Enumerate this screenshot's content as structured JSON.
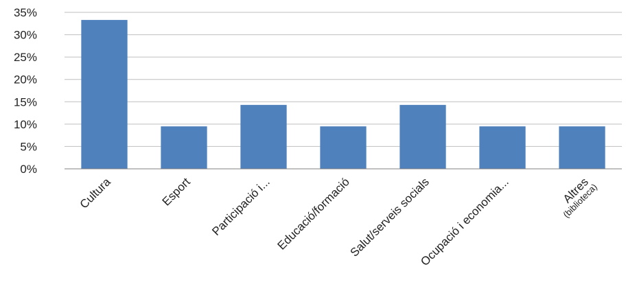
{
  "chart_data": {
    "type": "bar",
    "categories": [
      "Cultura",
      "Esport",
      "Participació i...",
      "Educació/formació",
      "Salut/serveis socials",
      "Ocupació i economia...",
      "Altres"
    ],
    "category_sublabels": [
      "",
      "",
      "",
      "",
      "",
      "",
      "(biblioteca)"
    ],
    "values": [
      33.3,
      9.5,
      14.3,
      9.5,
      14.3,
      9.5,
      9.5
    ],
    "value_format": "percent",
    "y_ticks": [
      "0%",
      "5%",
      "10%",
      "15%",
      "20%",
      "25%",
      "30%",
      "35%"
    ],
    "ylim": [
      0,
      35
    ],
    "grid": true,
    "legend": "none",
    "colors": {
      "bar": "#4F81BD",
      "grid": "#BFBFBF",
      "axis": "#808080"
    }
  }
}
